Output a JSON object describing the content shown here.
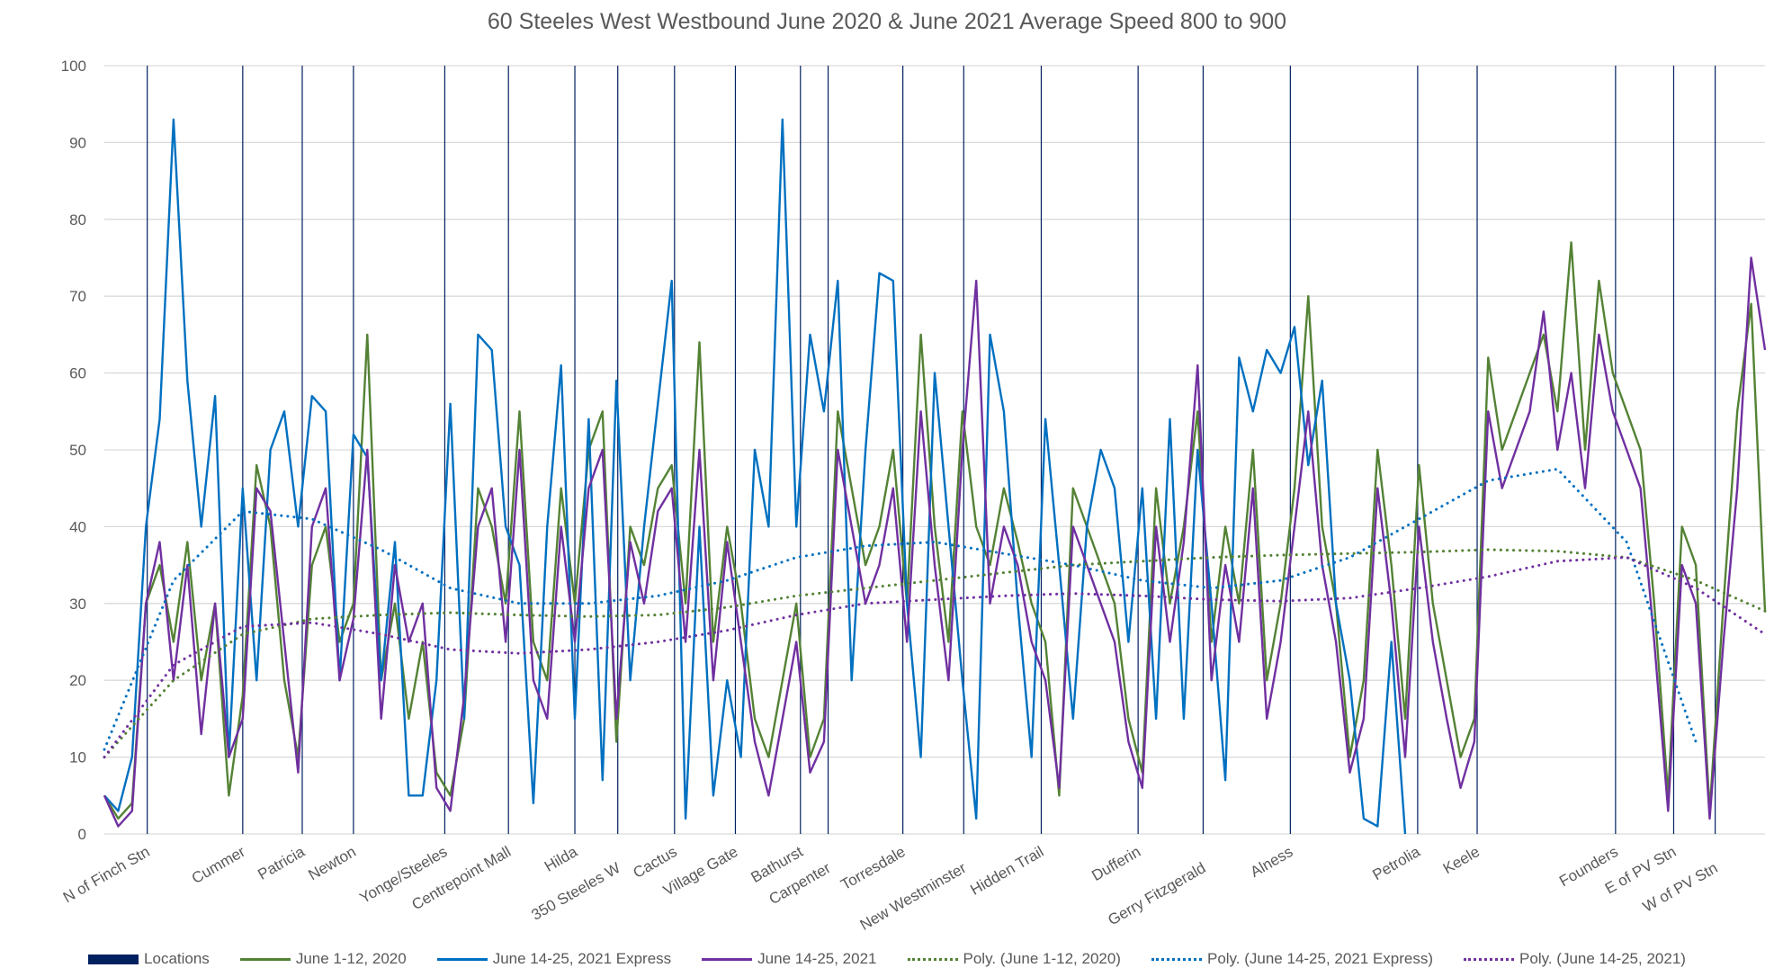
{
  "chart_data": {
    "type": "line",
    "title": "60 Steeles West Westbound June 2020 & June 2021 Average Speed 800 to 900",
    "ylim": [
      0,
      100
    ],
    "y_ticks": [
      0,
      10,
      20,
      30,
      40,
      50,
      60,
      70,
      80,
      90,
      100
    ],
    "grid": true,
    "legend_position": "bottom",
    "x_range": [
      0,
      120
    ],
    "locations": [
      {
        "name": "N of Finch Stn",
        "index": 3.1
      },
      {
        "name": "Cummer",
        "index": 10.0
      },
      {
        "name": "Patricia",
        "index": 14.3
      },
      {
        "name": "Newton",
        "index": 18.0
      },
      {
        "name": "Yonge/Steeles",
        "index": 24.6
      },
      {
        "name": "Centrepoint Mall",
        "index": 29.2
      },
      {
        "name": "Hilda",
        "index": 34.0
      },
      {
        "name": "350 Steeles W",
        "index": 37.1
      },
      {
        "name": "Cactus",
        "index": 41.2
      },
      {
        "name": "Village Gate",
        "index": 45.6
      },
      {
        "name": "Bathurst",
        "index": 50.3
      },
      {
        "name": "Carpenter",
        "index": 52.3
      },
      {
        "name": "Torresdale",
        "index": 57.7
      },
      {
        "name": "New Westminster",
        "index": 62.1
      },
      {
        "name": "Hidden Trail",
        "index": 67.7
      },
      {
        "name": "Dufferin",
        "index": 74.7
      },
      {
        "name": "Gerry Fitzgerald",
        "index": 79.4
      },
      {
        "name": "Alness",
        "index": 85.7
      },
      {
        "name": "Petrolia",
        "index": 94.9
      },
      {
        "name": "Keele",
        "index": 99.2
      },
      {
        "name": "Founders",
        "index": 109.2
      },
      {
        "name": "E of PV Stn",
        "index": 113.4
      },
      {
        "name": "W of PV Stn",
        "index": 116.4
      }
    ],
    "series": [
      {
        "name": "June 1-12, 2020",
        "color": "#548235",
        "values": [
          5,
          2,
          4,
          30,
          35,
          25,
          38,
          20,
          30,
          5,
          18,
          48,
          40,
          20,
          10,
          35,
          40,
          25,
          30,
          65,
          20,
          30,
          15,
          25,
          8,
          5,
          15,
          45,
          40,
          30,
          55,
          25,
          20,
          45,
          30,
          50,
          55,
          12,
          40,
          35,
          45,
          48,
          30,
          64,
          25,
          40,
          30,
          15,
          10,
          20,
          30,
          10,
          15,
          55,
          45,
          35,
          40,
          50,
          30,
          65,
          40,
          25,
          55,
          40,
          35,
          45,
          38,
          30,
          25,
          5,
          45,
          40,
          35,
          30,
          15,
          8,
          45,
          30,
          40,
          55,
          25,
          40,
          30,
          50,
          20,
          30,
          45,
          70,
          40,
          30,
          10,
          20,
          50,
          35,
          15,
          48,
          30,
          20,
          10,
          15,
          62,
          50,
          55,
          60,
          65,
          55,
          77,
          50,
          72,
          60,
          55,
          50,
          30,
          5,
          40,
          35,
          3,
          30,
          55,
          69,
          29
        ]
      },
      {
        "name": "June 14-25, 2021 Express",
        "color": "#0070c0",
        "values": [
          5,
          3,
          10,
          40,
          54,
          93,
          59,
          40,
          57,
          10,
          45,
          20,
          50,
          55,
          40,
          57,
          55,
          20,
          52,
          49,
          20,
          38,
          5,
          5,
          20,
          56,
          15,
          65,
          63,
          40,
          35,
          4,
          40,
          61,
          15,
          54,
          7,
          59,
          20,
          40,
          56,
          72,
          2,
          40,
          5,
          20,
          10,
          50,
          40,
          93,
          40,
          65,
          55,
          72,
          20,
          50,
          73,
          72,
          30,
          10,
          60,
          40,
          20,
          2,
          65,
          55,
          30,
          10,
          54,
          35,
          15,
          40,
          50,
          45,
          25,
          45,
          15,
          54,
          15,
          50,
          30,
          7,
          62,
          55,
          63,
          60,
          66,
          48,
          59,
          30,
          20,
          2,
          1,
          25,
          0,
          null,
          null,
          null,
          null,
          null,
          null,
          null,
          null,
          null,
          null,
          null,
          null,
          null,
          null,
          null,
          null,
          null,
          null,
          null,
          null,
          null,
          null,
          null,
          null,
          null,
          null
        ]
      },
      {
        "name": "June 14-25, 2021",
        "color": "#7030a0",
        "values": [
          5,
          1,
          3,
          30,
          38,
          20,
          35,
          13,
          30,
          10,
          15,
          45,
          42,
          25,
          8,
          40,
          45,
          20,
          28,
          50,
          15,
          35,
          25,
          30,
          6,
          3,
          18,
          40,
          45,
          25,
          50,
          20,
          15,
          40,
          25,
          45,
          50,
          15,
          38,
          30,
          42,
          45,
          25,
          50,
          20,
          38,
          25,
          12,
          5,
          15,
          25,
          8,
          12,
          50,
          40,
          30,
          35,
          45,
          25,
          55,
          35,
          20,
          50,
          72,
          30,
          40,
          35,
          25,
          20,
          6,
          40,
          35,
          30,
          25,
          12,
          6,
          40,
          25,
          38,
          61,
          20,
          35,
          25,
          45,
          15,
          25,
          40,
          55,
          35,
          25,
          8,
          15,
          45,
          30,
          10,
          40,
          25,
          15,
          6,
          12,
          55,
          45,
          50,
          55,
          68,
          50,
          60,
          45,
          65,
          55,
          50,
          45,
          25,
          3,
          35,
          30,
          2,
          25,
          45,
          75,
          63
        ]
      },
      {
        "name": "Poly. (June 1-12, 2020)",
        "color": "#548235",
        "trendline": true,
        "values": [
          10,
          20,
          26,
          28,
          28.5,
          28.8,
          28.5,
          28.3,
          28.5,
          29.5,
          31,
          32,
          33,
          34,
          35,
          35.5,
          36,
          36.3,
          36.5,
          36.7,
          37,
          36.8,
          36,
          33,
          29
        ]
      },
      {
        "name": "Poly. (June 14-25, 2021 Express)",
        "color": "#0070c0",
        "trendline": true,
        "values": [
          11,
          33,
          42,
          41,
          37,
          32,
          30,
          30,
          31,
          33,
          36,
          37.5,
          38,
          36.5,
          35,
          33,
          32,
          33,
          36,
          41,
          46,
          47.5,
          38,
          12,
          null
        ]
      },
      {
        "name": "Poly. (June 14-25, 2021)",
        "color": "#7030a0",
        "trendline": true,
        "values": [
          10,
          22,
          27,
          27.5,
          26,
          24,
          23.5,
          24,
          25,
          26.5,
          28.5,
          30,
          30.5,
          31,
          31.3,
          31,
          30.5,
          30.3,
          30.7,
          32,
          33.5,
          35.5,
          36,
          32,
          26
        ]
      }
    ],
    "legend": [
      {
        "label": "Locations",
        "color": "#002060",
        "style": "box"
      },
      {
        "label": "June 1-12, 2020",
        "color": "#548235",
        "style": "solid"
      },
      {
        "label": "June 14-25, 2021 Express",
        "color": "#0070c0",
        "style": "solid"
      },
      {
        "label": "June 14-25, 2021",
        "color": "#7030a0",
        "style": "solid"
      },
      {
        "label": "Poly. (June 1-12, 2020)",
        "color": "#548235",
        "style": "dotted"
      },
      {
        "label": "Poly. (June 14-25, 2021 Express)",
        "color": "#0070c0",
        "style": "dotted"
      },
      {
        "label": "Poly. (June 14-25, 2021)",
        "color": "#7030a0",
        "style": "dotted"
      }
    ],
    "location_line_color": "#002060"
  }
}
